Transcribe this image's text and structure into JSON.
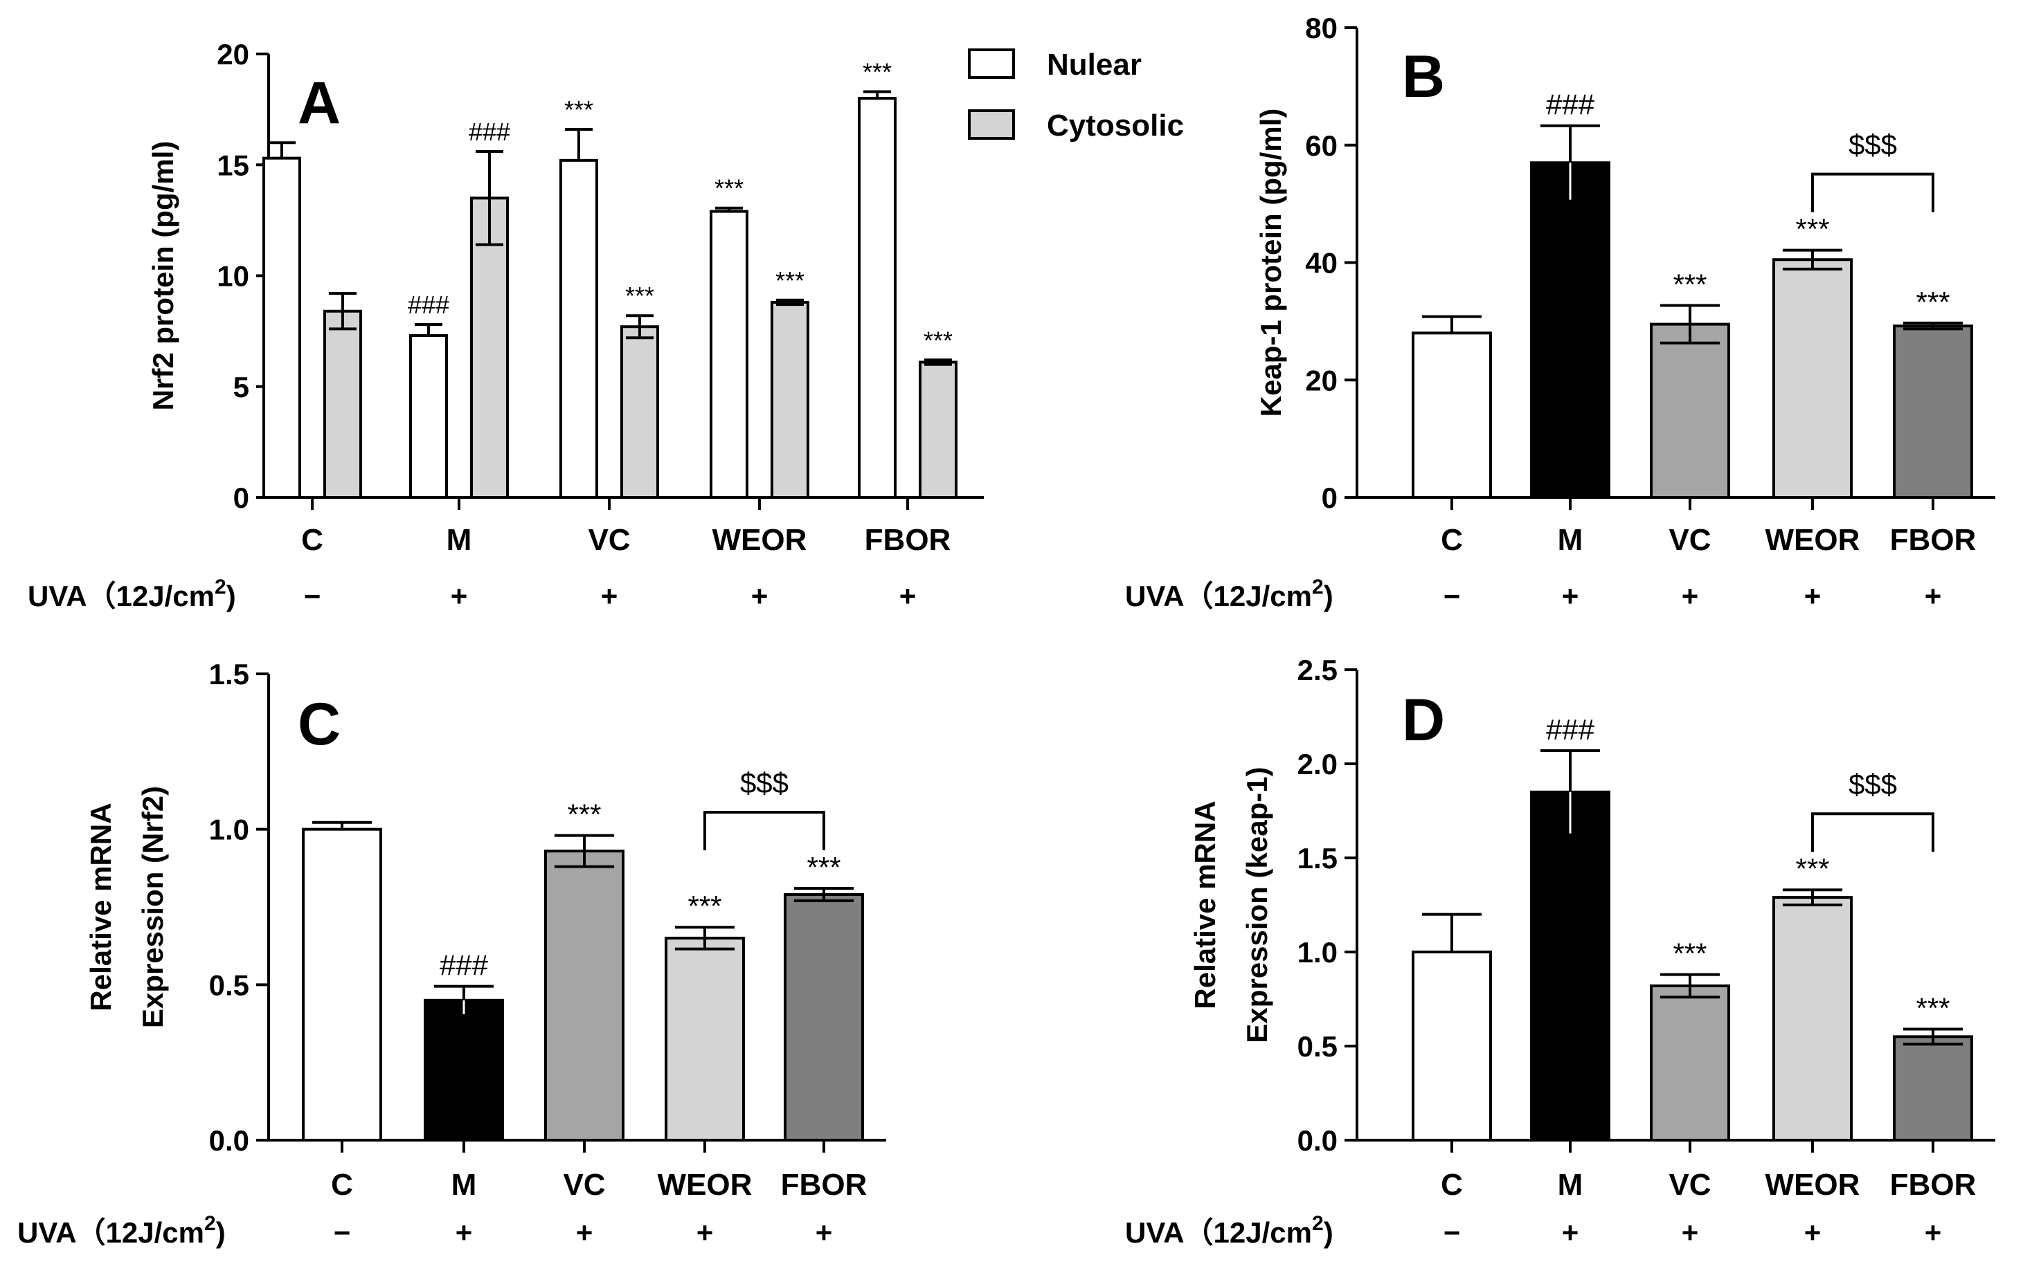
{
  "chart_data": [
    {
      "id": "A",
      "type": "bar",
      "title": "A",
      "ylabel": "Nrf2 protein (pg/ml)",
      "ylim": [
        0,
        20
      ],
      "yticks": [
        "0",
        "5",
        "10",
        "15",
        "20"
      ],
      "categories": [
        "C",
        "M",
        "VC",
        "WEOR",
        "FBOR"
      ],
      "uva_label": "UVA（12J/cm",
      "uva_sup": "2",
      "uva_close": ")",
      "uva_signs": [
        "−",
        "+",
        "+",
        "+",
        "+"
      ],
      "legend": [
        {
          "name": "Nulear",
          "color": "#ffffff"
        },
        {
          "name": "Cytosolic",
          "color": "#d4d4d4"
        }
      ],
      "series": [
        {
          "name": "Nulear",
          "color": "#ffffff",
          "values": [
            15.3,
            7.3,
            15.2,
            12.9,
            18.0
          ],
          "errors": [
            0.7,
            0.5,
            1.4,
            0.15,
            0.3
          ],
          "sig": [
            "",
            "###",
            "***",
            "***",
            "***"
          ]
        },
        {
          "name": "Cytosolic",
          "color": "#d4d4d4",
          "values": [
            8.4,
            13.5,
            7.7,
            8.8,
            6.1
          ],
          "errors": [
            0.8,
            2.1,
            0.5,
            0.1,
            0.1
          ],
          "sig": [
            "",
            "###",
            "***",
            "***",
            "***"
          ]
        }
      ]
    },
    {
      "id": "B",
      "type": "bar",
      "title": "B",
      "ylabel": "Keap-1 protein (pg/ml)",
      "ylim": [
        0,
        80
      ],
      "yticks": [
        "0",
        "20",
        "40",
        "60",
        "80"
      ],
      "categories": [
        "C",
        "M",
        "VC",
        "WEOR",
        "FBOR"
      ],
      "uva_label": "UVA（12J/cm",
      "uva_sup": "2",
      "uva_close": ")",
      "uva_signs": [
        "−",
        "+",
        "+",
        "+",
        "+"
      ],
      "colors": [
        "#ffffff",
        "#000000",
        "#a5a5a5",
        "#d4d4d4",
        "#7f7f7f"
      ],
      "values": [
        28.0,
        57.0,
        29.5,
        40.5,
        29.2
      ],
      "errors": [
        2.8,
        6.3,
        3.2,
        1.6,
        0.5
      ],
      "sig": [
        "",
        "###",
        "***",
        "***",
        "***"
      ],
      "bracket": {
        "from": 3,
        "to": 4,
        "label": "$$$"
      }
    },
    {
      "id": "C",
      "type": "bar",
      "title": "C",
      "ylabel": [
        "Relative mRNA",
        "Expression (Nrf2)"
      ],
      "ylim": [
        0,
        1.5
      ],
      "yticks": [
        "0.0",
        "0.5",
        "1.0",
        "1.5"
      ],
      "categories": [
        "C",
        "M",
        "VC",
        "WEOR",
        "FBOR"
      ],
      "uva_label": "UVA（12J/cm",
      "uva_sup": "2",
      "uva_close": ")",
      "uva_signs": [
        "−",
        "+",
        "+",
        "+",
        "+"
      ],
      "colors": [
        "#ffffff",
        "#000000",
        "#a5a5a5",
        "#d4d4d4",
        "#7f7f7f"
      ],
      "values": [
        1.0,
        0.45,
        0.93,
        0.65,
        0.79
      ],
      "errors": [
        0.022,
        0.045,
        0.05,
        0.035,
        0.02
      ],
      "sig": [
        "",
        "###",
        "***",
        "***",
        "***"
      ],
      "bracket": {
        "from": 3,
        "to": 4,
        "label": "$$$"
      }
    },
    {
      "id": "D",
      "type": "bar",
      "title": "D",
      "ylabel": [
        "Relative mRNA",
        "Expression (keap-1)"
      ],
      "ylim": [
        0,
        2.5
      ],
      "yticks": [
        "0.0",
        "0.5",
        "1.0",
        "1.5",
        "2.0",
        "2.5"
      ],
      "categories": [
        "C",
        "M",
        "VC",
        "WEOR",
        "FBOR"
      ],
      "uva_label": "UVA（12J/cm",
      "uva_sup": "2",
      "uva_close": ")",
      "uva_signs": [
        "−",
        "+",
        "+",
        "+",
        "+"
      ],
      "colors": [
        "#ffffff",
        "#000000",
        "#a5a5a5",
        "#d4d4d4",
        "#7f7f7f"
      ],
      "values": [
        1.0,
        1.85,
        0.82,
        1.29,
        0.55
      ],
      "errors": [
        0.2,
        0.22,
        0.06,
        0.04,
        0.04
      ],
      "sig": [
        "",
        "###",
        "***",
        "***",
        "***"
      ],
      "bracket": {
        "from": 3,
        "to": 4,
        "label": "$$$"
      }
    }
  ]
}
